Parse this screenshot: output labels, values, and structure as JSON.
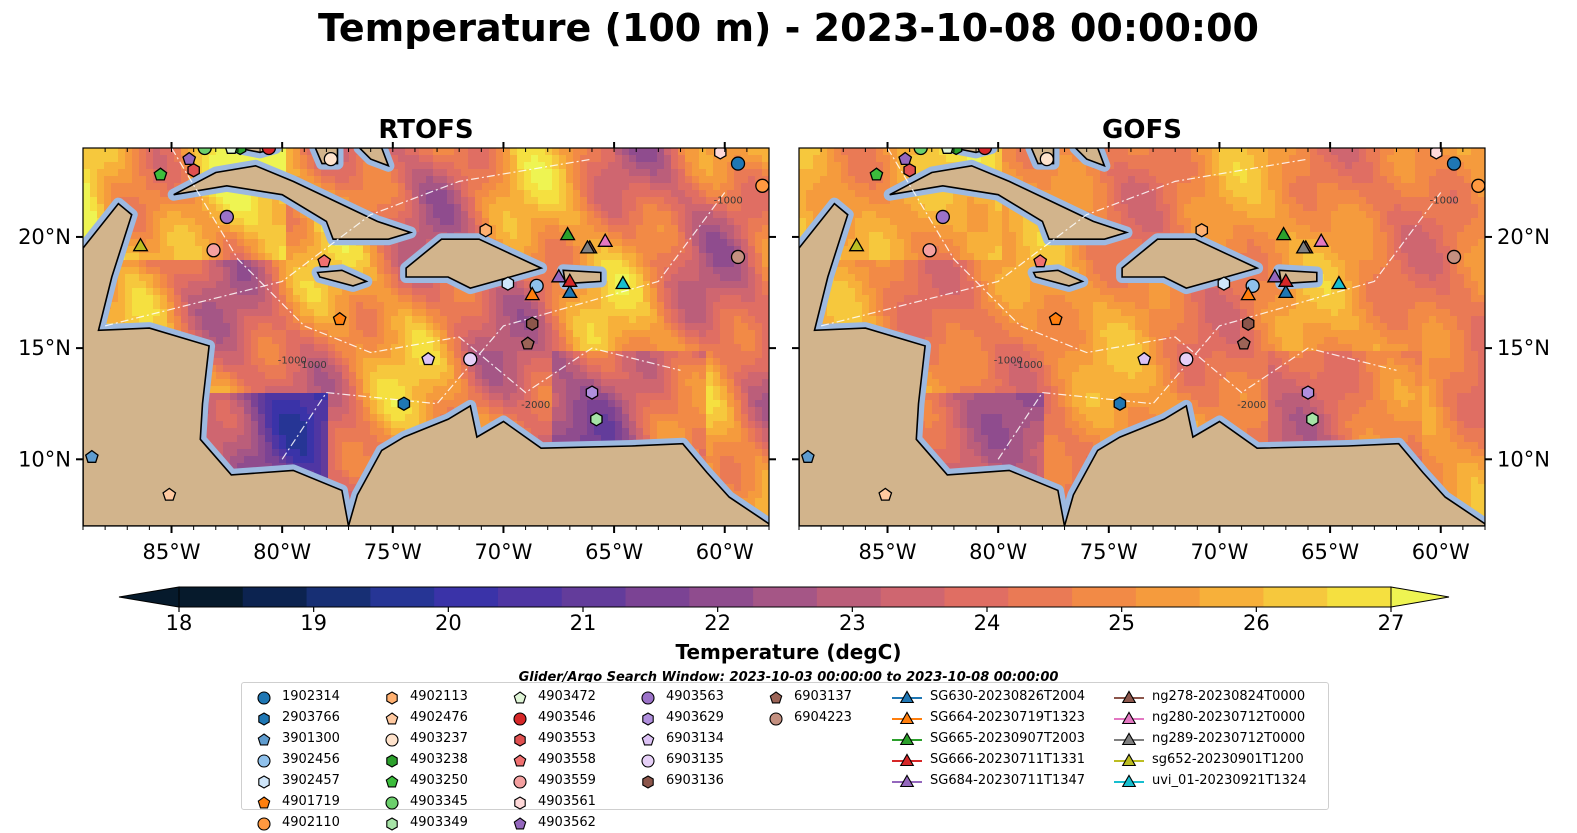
{
  "title": "Temperature (100 m) - 2023-10-08 00:00:00",
  "panels": [
    {
      "name": "RTOFS"
    },
    {
      "name": "GOFS"
    }
  ],
  "map": {
    "lon_range": [
      -89,
      -58
    ],
    "lat_range": [
      7,
      24
    ],
    "lon_ticks": [
      -85,
      -80,
      -75,
      -70,
      -65,
      -60
    ],
    "lon_tick_labels": [
      "85°W",
      "80°W",
      "75°W",
      "70°W",
      "65°W",
      "60°W"
    ],
    "lat_ticks": [
      10,
      15,
      20
    ],
    "lat_tick_labels": [
      "10°N",
      "15°N",
      "20°N"
    ],
    "contour_labels": [
      "-1000",
      "-1000",
      "-2000",
      "-1000",
      "-1000"
    ],
    "colors": {
      "land": "#d2b48c",
      "shelf": "#9db9e0",
      "cold": "#05182e",
      "warm": "#f5f552"
    }
  },
  "colorbar": {
    "label": "Temperature (degC)",
    "min": 18,
    "max": 27,
    "ticks": [
      18,
      19,
      20,
      21,
      22,
      23,
      24,
      25,
      26,
      27
    ],
    "colors": [
      "#061a2c",
      "#0c2350",
      "#172f74",
      "#263595",
      "#3a33a8",
      "#4f36a3",
      "#633c9b",
      "#7b4394",
      "#8f4c8e",
      "#a55686",
      "#bb5e7a",
      "#cf6670",
      "#e06e63",
      "#ea7a55",
      "#f28a46",
      "#f59b3d",
      "#f7b03a",
      "#f6c83d",
      "#f5e040"
    ],
    "extend_high_color": "#eef452"
  },
  "search_window": "Glider/Argo Search Window: 2023-10-03 00:00:00 to 2023-10-08 00:00:00",
  "legend": [
    {
      "label": "1902314",
      "marker": "circle",
      "color": "#1f77b4",
      "lon": -59.4,
      "lat": 23.3
    },
    {
      "label": "2903766",
      "marker": "hexagon",
      "color": "#1f77b4",
      "lon": -74.5,
      "lat": 12.5
    },
    {
      "label": "3901300",
      "marker": "pentagon",
      "color": "#5f9ccf",
      "lon": -88.6,
      "lat": 10.1
    },
    {
      "label": "3902456",
      "marker": "circle",
      "color": "#8fc1ec",
      "lon": -68.5,
      "lat": 17.8
    },
    {
      "label": "3902457",
      "marker": "hexagon",
      "color": "#cfe6fa",
      "lon": -69.8,
      "lat": 17.9
    },
    {
      "label": "4901719",
      "marker": "pentagon",
      "color": "#ff7f0e",
      "lon": -77.4,
      "lat": 16.3
    },
    {
      "label": "4902110",
      "marker": "circle",
      "color": "#ff9940",
      "lon": -58.3,
      "lat": 22.3
    },
    {
      "label": "4902113",
      "marker": "hexagon",
      "color": "#ffb070",
      "lon": -70.8,
      "lat": 20.3
    },
    {
      "label": "4902476",
      "marker": "pentagon",
      "color": "#ffc9a0",
      "lon": -85.1,
      "lat": 8.4
    },
    {
      "label": "4903237",
      "marker": "circle",
      "color": "#ffe3cc",
      "lon": -77.8,
      "lat": 23.5
    },
    {
      "label": "4903238",
      "marker": "hexagon",
      "color": "#2ca02c",
      "lon": -81.9,
      "lat": 24.0
    },
    {
      "label": "4903250",
      "marker": "pentagon",
      "color": "#3cbd3c",
      "lon": -85.5,
      "lat": 22.8
    },
    {
      "label": "4903345",
      "marker": "circle",
      "color": "#6ccf6c",
      "lon": -83.5,
      "lat": 24.0
    },
    {
      "label": "4903349",
      "marker": "hexagon",
      "color": "#a6e3a6",
      "lon": -65.8,
      "lat": 11.8
    },
    {
      "label": "4903472",
      "marker": "pentagon",
      "color": "#dff5d6",
      "lon": -82.3,
      "lat": 24.0
    },
    {
      "label": "4903546",
      "marker": "circle",
      "color": "#d62728",
      "lon": -80.6,
      "lat": 24.0
    },
    {
      "label": "4903553",
      "marker": "hexagon",
      "color": "#e05050",
      "lon": -84.0,
      "lat": 23.0
    },
    {
      "label": "4903558",
      "marker": "pentagon",
      "color": "#f07070",
      "lon": -78.1,
      "lat": 18.9
    },
    {
      "label": "4903559",
      "marker": "circle",
      "color": "#f4a0a0",
      "lon": -83.1,
      "lat": 19.4
    },
    {
      "label": "4903561",
      "marker": "hexagon",
      "color": "#ffd9d9",
      "lon": -60.2,
      "lat": 23.8
    },
    {
      "label": "4903562",
      "marker": "pentagon",
      "color": "#9467bd",
      "lon": -84.2,
      "lat": 23.5
    },
    {
      "label": "4903563",
      "marker": "circle",
      "color": "#9b72c8",
      "lon": -82.5,
      "lat": 20.9
    },
    {
      "label": "4903629",
      "marker": "hexagon",
      "color": "#b08fdd",
      "lon": -66.0,
      "lat": 13.0
    },
    {
      "label": "6903134",
      "marker": "pentagon",
      "color": "#dcc2f5",
      "lon": -73.4,
      "lat": 14.5
    },
    {
      "label": "6903135",
      "marker": "circle",
      "color": "#e6d0f7",
      "lon": -71.5,
      "lat": 14.5
    },
    {
      "label": "6903136",
      "marker": "hexagon",
      "color": "#8c564b",
      "lon": -68.7,
      "lat": 16.1
    },
    {
      "label": "6903137",
      "marker": "pentagon",
      "color": "#9c6457",
      "lon": -68.9,
      "lat": 15.2
    },
    {
      "label": "6904223",
      "marker": "circle",
      "color": "#c49080",
      "lon": -59.4,
      "lat": 19.1
    },
    {
      "label": "SG630-20230826T2004",
      "marker": "triangle",
      "color": "#1f77b4",
      "lon": -67.0,
      "lat": 17.5
    },
    {
      "label": "SG664-20230719T1323",
      "marker": "triangle",
      "color": "#ff7f0e",
      "lon": -68.7,
      "lat": 17.4
    },
    {
      "label": "SG665-20230907T2003",
      "marker": "triangle",
      "color": "#2ca02c",
      "lon": -67.1,
      "lat": 20.1
    },
    {
      "label": "SG666-20230711T1331",
      "marker": "triangle",
      "color": "#d62728",
      "lon": -67.0,
      "lat": 18.0
    },
    {
      "label": "SG684-20230711T1347",
      "marker": "triangle",
      "color": "#9467bd",
      "lon": -67.5,
      "lat": 18.2
    },
    {
      "label": "ng278-20230824T0000",
      "marker": "triangle",
      "color": "#8c564b",
      "lon": -66.1,
      "lat": 19.5
    },
    {
      "label": "ng280-20230712T0000",
      "marker": "triangle",
      "color": "#e377c2",
      "lon": -65.4,
      "lat": 19.8
    },
    {
      "label": "ng289-20230712T0000",
      "marker": "triangle",
      "color": "#7f7f7f",
      "lon": -66.2,
      "lat": 19.5
    },
    {
      "label": "sg652-20230901T1200",
      "marker": "triangle",
      "color": "#bcbd22",
      "lon": -86.4,
      "lat": 19.6
    },
    {
      "label": "uvi_01-20230921T1324",
      "marker": "triangle",
      "color": "#17becf",
      "lon": -64.6,
      "lat": 17.9
    }
  ]
}
